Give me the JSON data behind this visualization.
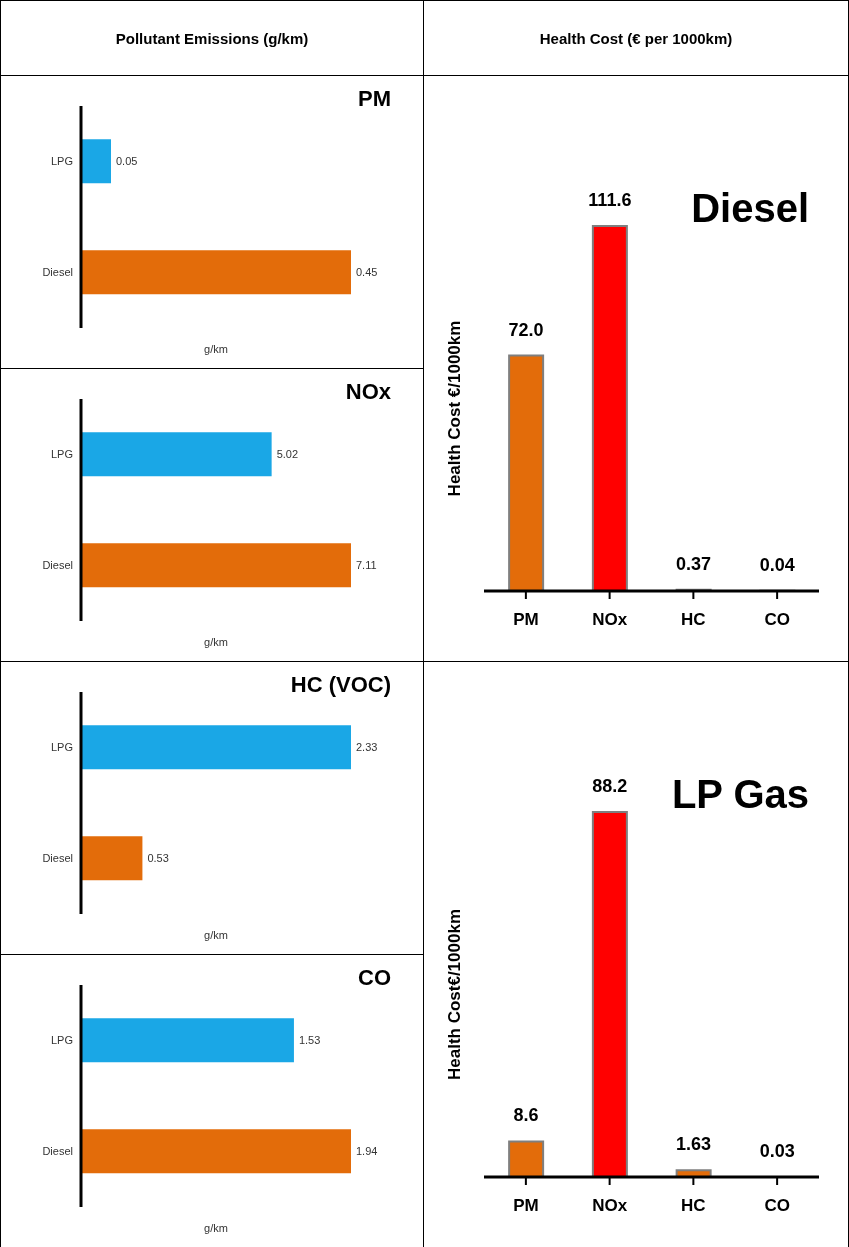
{
  "chart_data": [
    {
      "type": "bar",
      "orientation": "horizontal",
      "title": "PM",
      "categories": [
        "LPG",
        "Diesel"
      ],
      "values": [
        0.05,
        0.45
      ],
      "colors": [
        "#1aa7e6",
        "#e36c0a"
      ],
      "xlabel": "g/km",
      "data_labels": true,
      "annotations": [
        "Pollutant Emissions (g/km)"
      ]
    },
    {
      "type": "bar",
      "orientation": "horizontal",
      "title": "NOx",
      "categories": [
        "LPG",
        "Diesel"
      ],
      "values": [
        5.02,
        7.11
      ],
      "colors": [
        "#1aa7e6",
        "#e36c0a"
      ],
      "xlabel": "g/km",
      "data_labels": true
    },
    {
      "type": "bar",
      "orientation": "horizontal",
      "title": "HC (VOC)",
      "categories": [
        "LPG",
        "Diesel"
      ],
      "values": [
        2.33,
        0.53
      ],
      "colors": [
        "#1aa7e6",
        "#e36c0a"
      ],
      "xlabel": "g/km",
      "data_labels": true
    },
    {
      "type": "bar",
      "orientation": "horizontal",
      "title": "CO",
      "categories": [
        "LPG",
        "Diesel"
      ],
      "values": [
        1.53,
        1.94
      ],
      "colors": [
        "#1aa7e6",
        "#e36c0a"
      ],
      "xlabel": "g/km",
      "data_labels": true
    },
    {
      "type": "bar",
      "title": "Diesel",
      "ylabel": "Health Cost €/1000km",
      "categories": [
        "PM",
        "NOx",
        "HC",
        "CO"
      ],
      "values": [
        72.0,
        111.6,
        0.37,
        0.04
      ],
      "value_labels": [
        "72.0",
        "111.6",
        "0.37",
        "0.04"
      ],
      "colors": [
        "#e36c0a",
        "#ff0000",
        "#e36c0a",
        "#e36c0a"
      ],
      "annotations": [
        "Health Cost (€ per 1000km)"
      ]
    },
    {
      "type": "bar",
      "title": "LP Gas",
      "ylabel": "Health Cost€/1000km",
      "categories": [
        "PM",
        "NOx",
        "HC",
        "CO"
      ],
      "values": [
        8.6,
        88.2,
        1.63,
        0.03
      ],
      "value_labels": [
        "8.6",
        "88.2",
        "1.63",
        "0.03"
      ],
      "colors": [
        "#e36c0a",
        "#ff0000",
        "#e36c0a",
        "#e36c0a"
      ]
    }
  ]
}
